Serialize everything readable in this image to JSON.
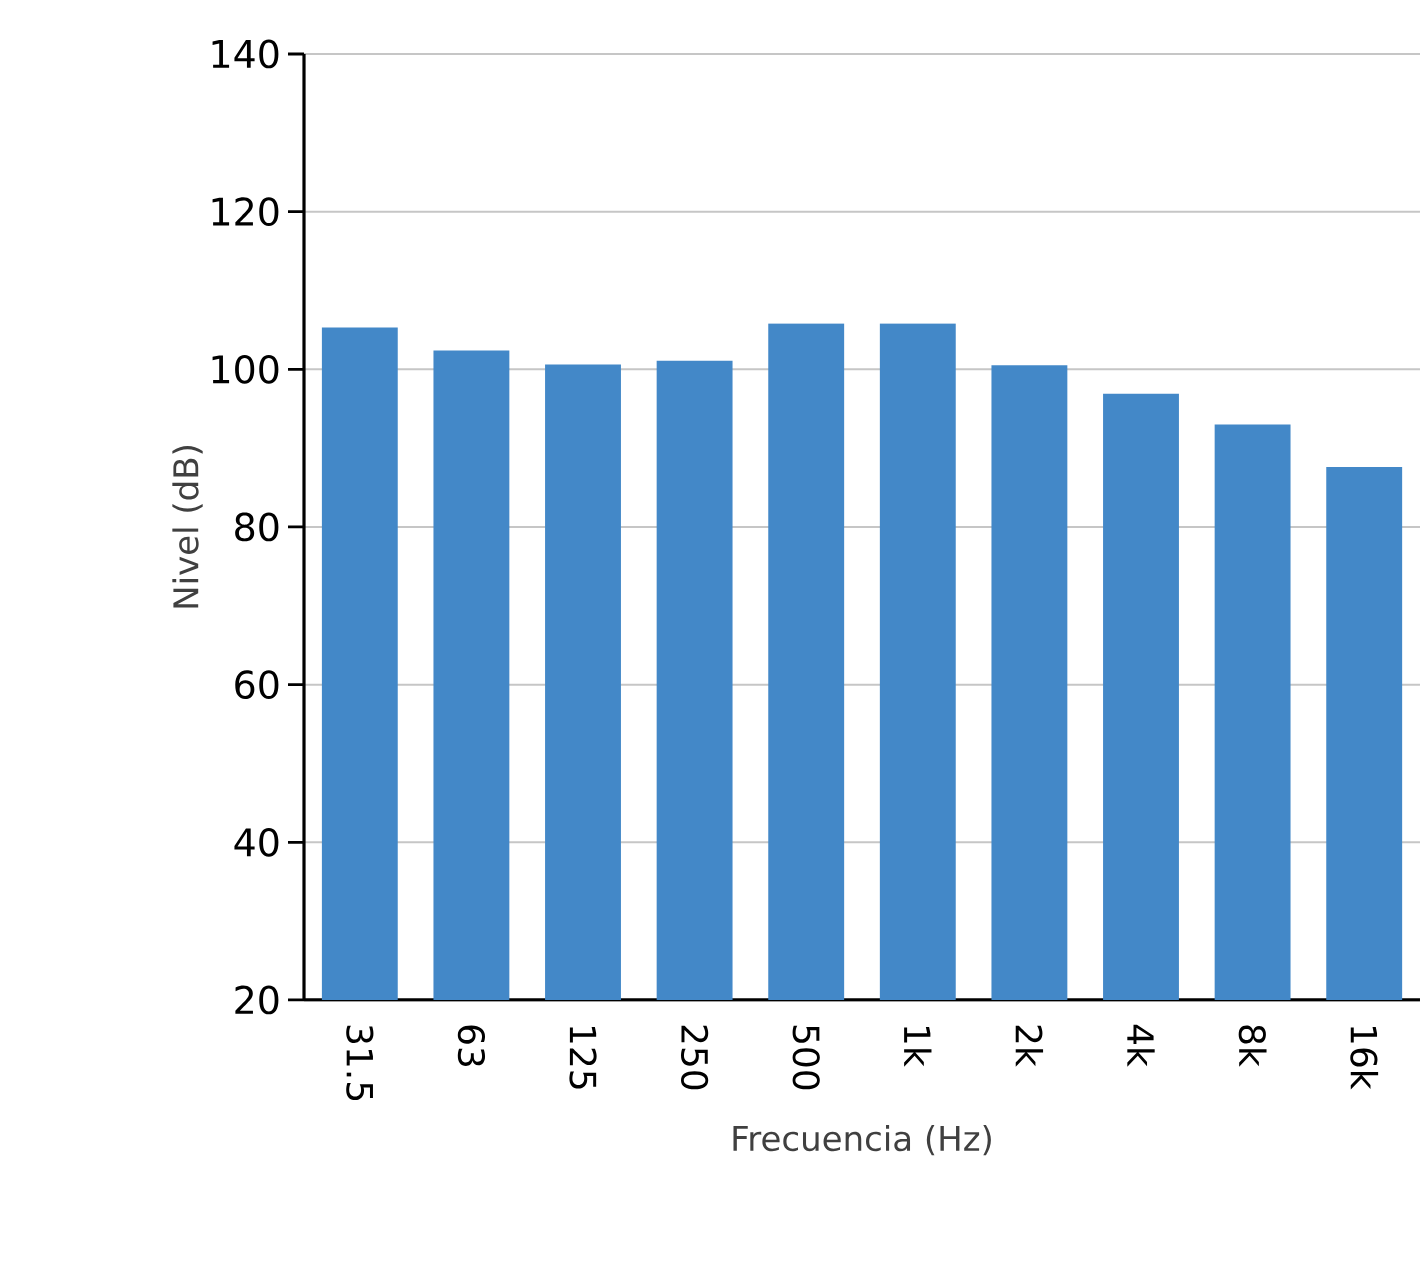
{
  "chart_data": {
    "type": "bar",
    "xlabel": "Frecuencia (Hz)",
    "ylabel": "Nivel (dB)",
    "categories": [
      "31.5",
      "63",
      "125",
      "250",
      "500",
      "1k",
      "2k",
      "4k",
      "8k",
      "16k"
    ],
    "values": [
      105.3,
      102.4,
      100.6,
      101.1,
      105.8,
      105.8,
      100.5,
      96.9,
      93.0,
      87.6
    ],
    "color": "#4388c8",
    "ylim": [
      20,
      140
    ],
    "yticks": [
      20,
      40,
      60,
      80,
      100,
      120,
      140
    ],
    "grid": "y"
  }
}
